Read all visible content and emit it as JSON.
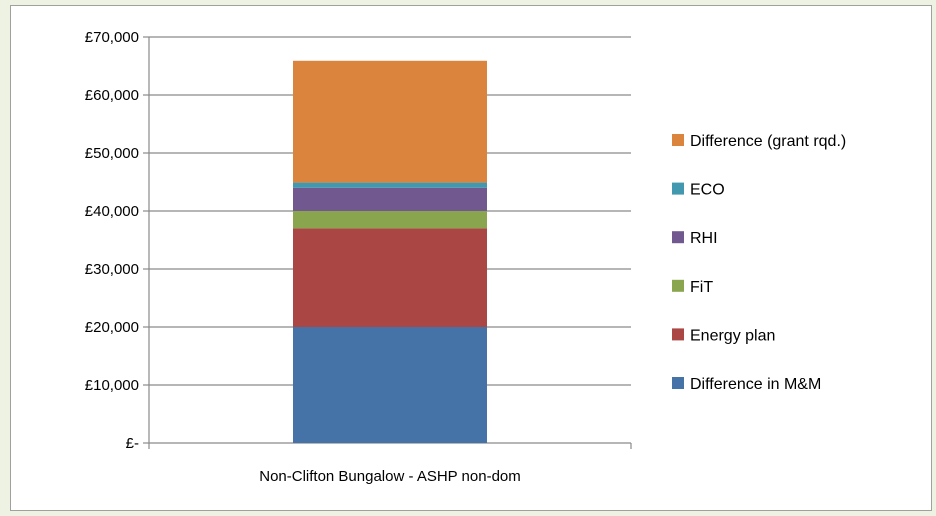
{
  "chart_data": {
    "type": "bar",
    "stacked": true,
    "categories": [
      "Non-Clifton Bungalow - ASHP non-dom"
    ],
    "series": [
      {
        "name": "Difference in M&M",
        "values": [
          20000
        ],
        "color": "#4573a7"
      },
      {
        "name": "Energy plan",
        "values": [
          17000
        ],
        "color": "#aa4643"
      },
      {
        "name": "FiT",
        "values": [
          3000
        ],
        "color": "#89a54e"
      },
      {
        "name": "RHI",
        "values": [
          4000
        ],
        "color": "#71588f"
      },
      {
        "name": "ECO",
        "values": [
          900
        ],
        "color": "#4198af"
      },
      {
        "name": "Difference (grant rqd.)",
        "values": [
          21000
        ],
        "color": "#db843d"
      }
    ],
    "ylim": [
      0,
      70000
    ],
    "yticks": [
      0,
      10000,
      20000,
      30000,
      40000,
      50000,
      60000,
      70000
    ],
    "ytick_labels": [
      "£-",
      "£10,000",
      "£20,000",
      "£30,000",
      "£40,000",
      "£50,000",
      "£60,000",
      "£70,000"
    ],
    "grid": true,
    "legend_position": "right",
    "legend_order": [
      "Difference (grant rqd.)",
      "ECO",
      "RHI",
      "FiT",
      "Energy plan",
      "Difference in M&M"
    ]
  }
}
